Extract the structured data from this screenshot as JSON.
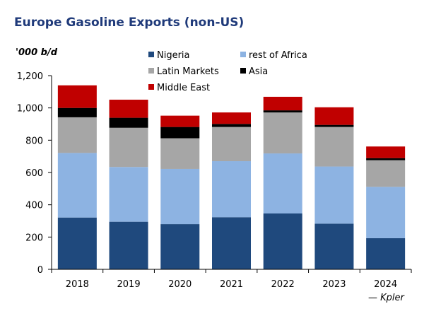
{
  "chart_data": {
    "type": "bar",
    "stacked": true,
    "title": "Europe Gasoline Exports (non-US)",
    "ylabel": "'000 b/d",
    "xlabel": "",
    "source": "— Kpler",
    "categories": [
      "2018",
      "2019",
      "2020",
      "2021",
      "2022",
      "2023",
      "2024"
    ],
    "ylim": [
      0,
      1200
    ],
    "yticks": [
      0,
      200,
      400,
      600,
      800,
      1000,
      1200
    ],
    "ytick_labels": [
      "0",
      "200",
      "400",
      "600",
      "800",
      "1,000",
      "1,200"
    ],
    "grid": false,
    "legend_position": "top",
    "series": [
      {
        "name": "Nigeria",
        "color": "#1f497d",
        "values": [
          321,
          295,
          280,
          323,
          346,
          283,
          193
        ]
      },
      {
        "name": "rest of Africa",
        "color": "#8db3e2",
        "values": [
          400,
          339,
          342,
          347,
          372,
          354,
          318
        ]
      },
      {
        "name": "Latin Markets",
        "color": "#a6a6a6",
        "values": [
          221,
          243,
          190,
          212,
          254,
          245,
          165
        ]
      },
      {
        "name": "Asia",
        "color": "#000000",
        "values": [
          58,
          62,
          70,
          19,
          13,
          13,
          13
        ]
      },
      {
        "name": "Middle East",
        "color": "#c00000",
        "values": [
          140,
          112,
          70,
          71,
          84,
          109,
          72
        ]
      }
    ]
  }
}
